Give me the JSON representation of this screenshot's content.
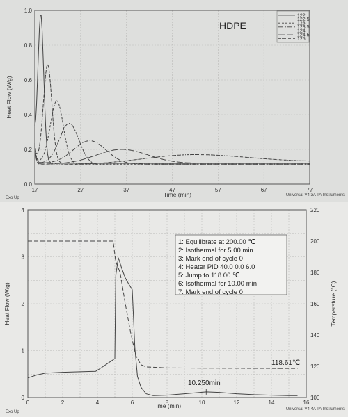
{
  "chart_data": [
    {
      "type": "line",
      "title": "HDPE",
      "xlabel": "Time (min)",
      "ylabel": "Heat Flow (W/g)",
      "xlim": [
        17,
        77
      ],
      "ylim": [
        0.0,
        1.0
      ],
      "xticks": [
        "17",
        "27",
        "37",
        "47",
        "57",
        "67",
        "77"
      ],
      "yticks": [
        "0.0",
        "0.2",
        "0.4",
        "0.6",
        "0.8",
        "1.0"
      ],
      "grid": true,
      "legend_position": "top-right",
      "footer_left": "Exo Up",
      "footer_right": "Universal V4.3A TA Instruments",
      "series": [
        {
          "name": "122",
          "peak_time": 18.3,
          "peak_value": 0.98,
          "width": 0.9,
          "baseline": 0.13,
          "tail": 0.12
        },
        {
          "name": "122.5",
          "peak_time": 19.8,
          "peak_value": 0.69,
          "width": 1.3,
          "baseline": 0.13,
          "tail": 0.12
        },
        {
          "name": "123",
          "peak_time": 21.8,
          "peak_value": 0.48,
          "width": 2.0,
          "baseline": 0.125,
          "tail": 0.115
        },
        {
          "name": "123.5",
          "peak_time": 24.5,
          "peak_value": 0.35,
          "width": 3.0,
          "baseline": 0.12,
          "tail": 0.11
        },
        {
          "name": "124",
          "peak_time": 29.0,
          "peak_value": 0.25,
          "width": 5.0,
          "baseline": 0.12,
          "tail": 0.115
        },
        {
          "name": "124.5",
          "peak_time": 36.0,
          "peak_value": 0.2,
          "width": 8.0,
          "baseline": 0.115,
          "tail": 0.12
        },
        {
          "name": "125",
          "peak_time": 52.0,
          "peak_value": 0.17,
          "width": 16.0,
          "baseline": 0.11,
          "tail": 0.13
        }
      ]
    },
    {
      "type": "line",
      "xlabel": "Time (min)",
      "ylabel": "Heat Flow (W/g)",
      "y2label": "Temperature (°C)",
      "xlim": [
        0,
        16
      ],
      "ylim": [
        0,
        4
      ],
      "y2lim": [
        100,
        220
      ],
      "xticks": [
        "0",
        "2",
        "4",
        "6",
        "8",
        "10",
        "12",
        "14",
        "16"
      ],
      "yticks": [
        "0",
        "1",
        "2",
        "3",
        "4"
      ],
      "y2ticks": [
        "100",
        "120",
        "140",
        "160",
        "180",
        "200",
        "220"
      ],
      "grid": true,
      "footer_left": "Exo Up",
      "footer_right": "Universal V4.4A TA Instruments",
      "steps": [
        "1: Equilibrate at 200.00 ℃",
        "2: Isothermal for 5.00 min",
        "3: Mark end of cycle 0",
        "4: Heater PID 40.0 0.0 6.0",
        "5: Jump to 118.00 ℃",
        "6: Isothermal for 10.00 min",
        "7: Mark end of cycle 0"
      ],
      "annotations": {
        "temperature_label": "118.61℃",
        "temperature_value": 118.61,
        "peak_time_label": "10.250min",
        "peak_time": 10.25
      },
      "heat_flow": {
        "x": [
          0,
          0.5,
          1,
          2,
          3,
          3.9,
          4.2,
          4.6,
          5.0,
          5.05,
          5.2,
          5.4,
          5.6,
          5.8,
          6.0,
          6.15,
          6.3,
          6.5,
          6.8,
          7.2,
          8,
          9,
          10.25,
          11,
          12,
          13,
          14,
          15,
          15.5
        ],
        "y": [
          0.42,
          0.48,
          0.52,
          0.54,
          0.55,
          0.56,
          0.63,
          0.73,
          0.83,
          2.6,
          2.98,
          2.75,
          2.55,
          2.42,
          2.3,
          1.05,
          0.45,
          0.22,
          0.08,
          0.04,
          0.05,
          0.08,
          0.12,
          0.11,
          0.08,
          0.06,
          0.05,
          0.04,
          0.04
        ]
      },
      "temperature": {
        "x": [
          0,
          4.9,
          5.05,
          5.3,
          5.6,
          5.9,
          6.2,
          6.5,
          6.8,
          8,
          10,
          12,
          14.5,
          15.5
        ],
        "y": [
          200,
          200,
          187,
          180,
          160,
          142,
          127,
          121,
          119.6,
          119,
          118.8,
          118.7,
          118.62,
          118.61
        ]
      }
    }
  ]
}
